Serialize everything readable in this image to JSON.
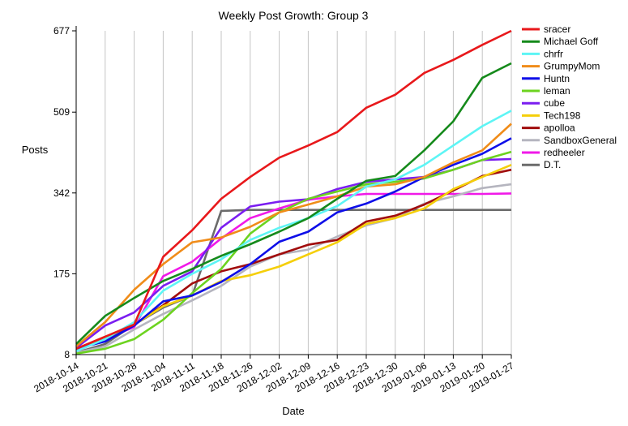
{
  "chart_data": {
    "type": "line",
    "title": "Weekly Post Growth: Group 3",
    "xlabel": "Date",
    "ylabel": "Posts",
    "categories": [
      "2018-10-14",
      "2018-10-21",
      "2018-10-28",
      "2018-11-04",
      "2018-11-11",
      "2018-11-18",
      "2018-11-26",
      "2018-12-02",
      "2018-12-09",
      "2018-12-16",
      "2018-12-23",
      "2018-12-30",
      "2019-01-06",
      "2019-01-13",
      "2019-01-20",
      "2019-01-27"
    ],
    "yticks": [
      8,
      175,
      342,
      509,
      677
    ],
    "ylim": [
      8,
      677
    ],
    "grid": "vertical",
    "legend_position": "right",
    "series": [
      {
        "name": "sracer",
        "color": "#e8181b",
        "values": [
          20,
          45,
          70,
          210,
          265,
          330,
          375,
          415,
          440,
          468,
          518,
          545,
          590,
          617,
          648,
          677
        ]
      },
      {
        "name": "Michael Goff",
        "color": "#158a1b",
        "values": [
          30,
          88,
          125,
          160,
          185,
          212,
          236,
          262,
          290,
          330,
          367,
          377,
          430,
          490,
          580,
          610
        ]
      },
      {
        "name": "chrfr",
        "color": "#5df5f5",
        "values": [
          15,
          40,
          75,
          140,
          175,
          205,
          245,
          270,
          290,
          315,
          355,
          370,
          400,
          440,
          480,
          512
        ]
      },
      {
        "name": "GrumpyMom",
        "color": "#f08c19",
        "values": [
          25,
          75,
          142,
          195,
          240,
          250,
          272,
          302,
          318,
          335,
          355,
          360,
          375,
          405,
          430,
          485
        ]
      },
      {
        "name": "Huntn",
        "color": "#0e0ee8",
        "values": [
          20,
          35,
          68,
          118,
          130,
          158,
          195,
          241,
          262,
          302,
          320,
          345,
          375,
          400,
          423,
          455
        ]
      },
      {
        "name": "leman",
        "color": "#6cd31f",
        "values": [
          10,
          20,
          40,
          80,
          135,
          185,
          258,
          302,
          330,
          345,
          360,
          365,
          372,
          390,
          410,
          427
        ]
      },
      {
        "name": "cube",
        "color": "#7a1df0",
        "values": [
          22,
          68,
          95,
          150,
          180,
          270,
          314,
          324,
          329,
          350,
          365,
          370,
          375,
          390,
          410,
          412
        ]
      },
      {
        "name": "Tech198",
        "color": "#f5cf0a",
        "values": [
          20,
          45,
          70,
          108,
          130,
          160,
          172,
          190,
          215,
          240,
          278,
          290,
          310,
          350,
          375,
          400
        ]
      },
      {
        "name": "apolloa",
        "color": "#a10d0d",
        "values": [
          20,
          40,
          70,
          110,
          155,
          180,
          195,
          215,
          235,
          245,
          283,
          295,
          318,
          347,
          377,
          390
        ]
      },
      {
        "name": "SandboxGeneral",
        "color": "#b5b5bf",
        "values": [
          12,
          25,
          60,
          92,
          120,
          150,
          190,
          215,
          225,
          252,
          275,
          290,
          320,
          335,
          352,
          360
        ]
      },
      {
        "name": "redheeler",
        "color": "#f019e8",
        "values": [
          15,
          40,
          65,
          170,
          200,
          248,
          290,
          310,
          328,
          335,
          340,
          340,
          340,
          340,
          340,
          341
        ]
      },
      {
        "name": "D.T.",
        "color": "#6b6b6b",
        "values": [
          12,
          30,
          70,
          105,
          130,
          305,
          307,
          307,
          307,
          307,
          307,
          307,
          307,
          307,
          307,
          307
        ]
      }
    ]
  }
}
